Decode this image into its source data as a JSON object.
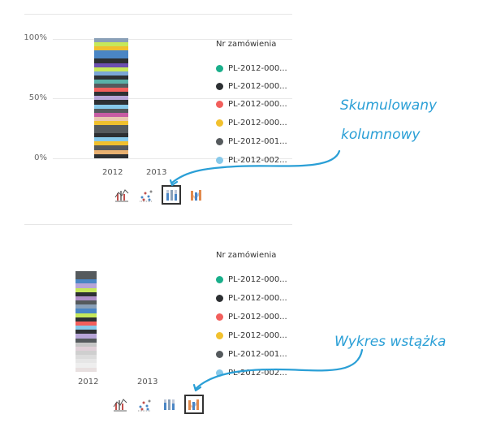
{
  "panel1": {
    "y_ticks": [
      "100%",
      "50%",
      "0%"
    ],
    "x_ticks": [
      "2012",
      "2013"
    ],
    "legend_title": "Nr zamówienia",
    "legend_items": [
      {
        "label": "PL-2012-000...",
        "color": "#1aaf8b"
      },
      {
        "label": "PL-2012-000...",
        "color": "#2d3033"
      },
      {
        "label": "PL-2012-000...",
        "color": "#f25f5c"
      },
      {
        "label": "PL-2012-000...",
        "color": "#f2c12e"
      },
      {
        "label": "PL-2012-001...",
        "color": "#555a5d"
      },
      {
        "label": "PL-2012-002...",
        "color": "#87c9ea"
      }
    ],
    "callout_line1": "Skumulowany",
    "callout_line2": "kolumnowy",
    "stack_colors": [
      "#8aa0b8",
      "#c6e85a",
      "#f0c02e",
      "#4a86c5",
      "#4a86c5",
      "#2d3033",
      "#6c4fb0",
      "#c6e85a",
      "#7aa6d6",
      "#2d3033",
      "#5ab1a8",
      "#555a5d",
      "#f25f5c",
      "#2d3033",
      "#b7a5d8",
      "#2d3033",
      "#87c9ea",
      "#555a5d",
      "#c75ca3",
      "#e8c7b0",
      "#f0c02e",
      "#555a5d",
      "#555a5d",
      "#2d3033",
      "#87c9ea",
      "#f0c02e",
      "#555a5d",
      "#e8b070",
      "#2d3033"
    ]
  },
  "panel2": {
    "x_ticks": [
      "2012",
      "2013"
    ],
    "legend_title": "Nr zamówienia",
    "legend_items": [
      {
        "label": "PL-2012-000...",
        "color": "#1aaf8b"
      },
      {
        "label": "PL-2012-000...",
        "color": "#2d3033"
      },
      {
        "label": "PL-2012-000...",
        "color": "#f25f5c"
      },
      {
        "label": "PL-2012-000...",
        "color": "#f2c12e"
      },
      {
        "label": "PL-2012-001...",
        "color": "#555a5d"
      },
      {
        "label": "PL-2012-002...",
        "color": "#87c9ea"
      }
    ],
    "callout": "Wykres wstążka",
    "stack_colors": [
      "#555a5d",
      "#555a5d",
      "#4a86c5",
      "#b7a5d8",
      "#c6e85a",
      "#2d3033",
      "#b08fc8",
      "#555a5d",
      "#8aa0b8",
      "#4a86c5",
      "#c6e85a",
      "#2d3033",
      "#f25f5c",
      "#87c9ea",
      "#2d3033",
      "#b7a5d8",
      "#555a5d",
      "#c6c6c6",
      "#e0d0d8",
      "#cfcfcf",
      "#dcdcdc",
      "#e6e6e6",
      "#eeeeee",
      "#e8e0e0"
    ]
  },
  "icons": [
    "line-column-icon",
    "scatter-icon",
    "stacked-column-icon",
    "ribbon-chart-icon"
  ],
  "colors": {
    "accent": "#2a9fd6"
  }
}
